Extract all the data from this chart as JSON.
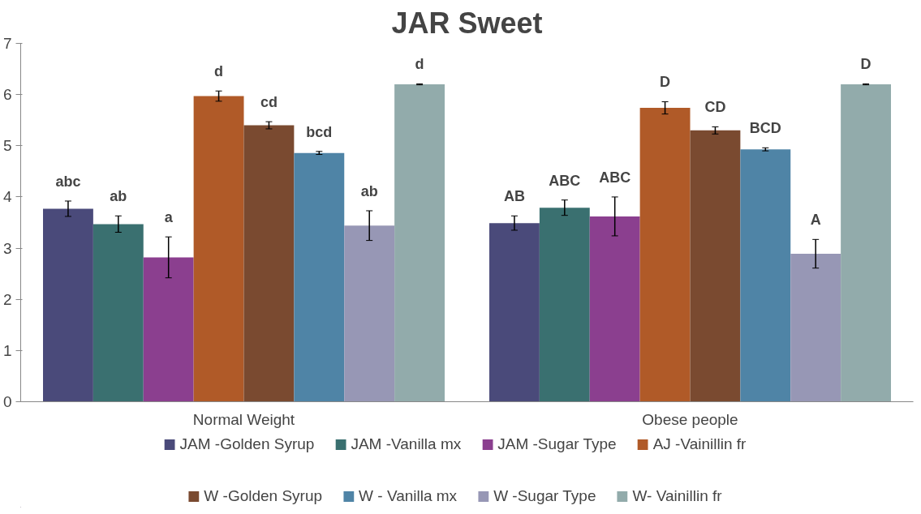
{
  "chart_data": {
    "type": "bar",
    "title": "JAR Sweet",
    "categories": [
      "Normal Weight",
      "Obese people"
    ],
    "ylim": [
      0,
      7
    ],
    "yticks": [
      0,
      1,
      2,
      3,
      4,
      5,
      6,
      7
    ],
    "grid": false,
    "legend": "bottom",
    "series": [
      {
        "name": "JAM -Golden Syrup",
        "color": "#4a4a7a",
        "values": [
          3.77,
          3.49
        ],
        "errors": [
          0.15,
          0.14
        ],
        "value_labels": [
          "abc",
          "AB"
        ]
      },
      {
        "name": "JAM -Vanilla mx",
        "color": "#3a7070",
        "values": [
          3.47,
          3.79
        ],
        "errors": [
          0.16,
          0.15
        ],
        "value_labels": [
          "ab",
          "ABC"
        ]
      },
      {
        "name": "JAM -Sugar Type",
        "color": "#8b3f8f",
        "values": [
          2.82,
          3.62
        ],
        "errors": [
          0.4,
          0.38
        ],
        "value_labels": [
          "a",
          "ABC"
        ]
      },
      {
        "name": "AJ -Vainillin fr",
        "color": "#b05a28",
        "values": [
          5.97,
          5.74
        ],
        "errors": [
          0.1,
          0.12
        ],
        "value_labels": [
          "d",
          "D"
        ]
      },
      {
        "name": "W -Golden Syrup",
        "color": "#7a4a30",
        "values": [
          5.4,
          5.3
        ],
        "errors": [
          0.07,
          0.07
        ],
        "value_labels": [
          "cd",
          "CD"
        ]
      },
      {
        "name": "W - Vanilla mx",
        "color": "#4f84a6",
        "values": [
          4.86,
          4.93
        ],
        "errors": [
          0.03,
          0.03
        ],
        "value_labels": [
          "bcd",
          "BCD"
        ]
      },
      {
        "name": "W -Sugar Type",
        "color": "#9797b5",
        "values": [
          3.44,
          2.89
        ],
        "errors": [
          0.29,
          0.28
        ],
        "value_labels": [
          "ab",
          "A"
        ]
      },
      {
        "name": "W- Vainillin fr",
        "color": "#92abab",
        "values": [
          6.2,
          6.2
        ],
        "errors": [
          0.01,
          0.01
        ],
        "value_labels": [
          "d",
          "D"
        ]
      }
    ]
  }
}
